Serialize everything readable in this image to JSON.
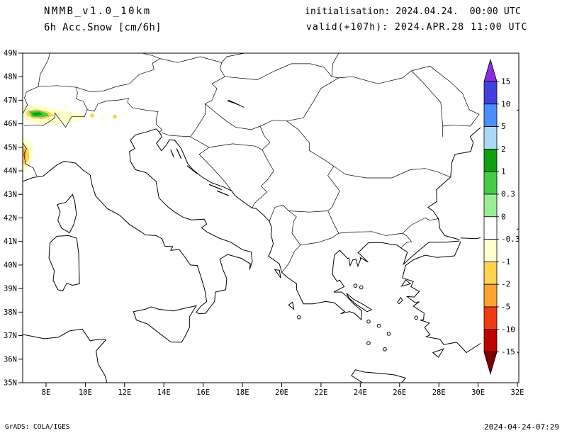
{
  "header": {
    "model": "NMMB_v1.0_10km",
    "field": "6h Acc.Snow [cm/6h]",
    "init": "initialisation: 2024.04.24.  00:00 UTC",
    "valid": "valid(+107h): 2024.APR.28 11:00 UTC"
  },
  "axes": {
    "lat_labels": [
      "49N",
      "48N",
      "47N",
      "46N",
      "45N",
      "44N",
      "43N",
      "42N",
      "41N",
      "40N",
      "39N",
      "38N",
      "37N",
      "36N",
      "35N"
    ],
    "lon_labels": [
      "8E",
      "10E",
      "12E",
      "14E",
      "16E",
      "18E",
      "20E",
      "22E",
      "24E",
      "26E",
      "28E",
      "30E",
      "32E"
    ]
  },
  "colorbar": {
    "labels": [
      "15",
      "10",
      "5",
      "2",
      "1",
      "0.3",
      "0",
      "-0.3",
      "-1",
      "-2",
      "-5",
      "-10",
      "-15"
    ],
    "arrow_top_color": "#8a2be2",
    "arrow_bottom_color": "#7e0000",
    "segment_colors": [
      "#4040e0",
      "#4a8fff",
      "#a9d9f5",
      "#0fa00f",
      "#44cc44",
      "#98ee90",
      "#ffffff",
      "#ffffce",
      "#ffd24f",
      "#ffa32e",
      "#f03a12",
      "#bf0000"
    ]
  },
  "footer": {
    "credit": "GrADS: COLA/IGES",
    "timestamp": "2024-04-24-07:29"
  },
  "chart_data": {
    "type": "map",
    "variable": "6h accumulated snow [cm/6h]",
    "model": "NMMB v1.0 10km",
    "init_time": "2024-04-24 00:00 UTC",
    "valid_time": "2024-04-28 11:00 UTC (+107h)",
    "lon_range_deg_e": [
      8,
      32
    ],
    "lat_range_deg_n": [
      35,
      49
    ],
    "contour_levels_cm": [
      15,
      10,
      5,
      2,
      1,
      0.3,
      0,
      -0.3,
      -1,
      -2,
      -5,
      -10,
      -15
    ],
    "shaded_regions": [
      {
        "area": "Western Alps (Switzerland / NW Italy)",
        "lon_e": [
          6.9,
          8.5
        ],
        "lat_n": [
          46.0,
          46.8
        ],
        "value_cm": "0.3 to 2"
      },
      {
        "area": "Alpine fringe (Savoie to South Tyrol)",
        "lon_e": [
          6.8,
          12.0
        ],
        "lat_n": [
          45.8,
          46.9
        ],
        "value_cm": "-1 to 0.3"
      },
      {
        "area": "French Alps at western map edge",
        "lon_e": [
          6.8,
          7.4
        ],
        "lat_n": [
          43.9,
          45.4
        ],
        "value_cm": "-5 to -0.3"
      }
    ]
  }
}
